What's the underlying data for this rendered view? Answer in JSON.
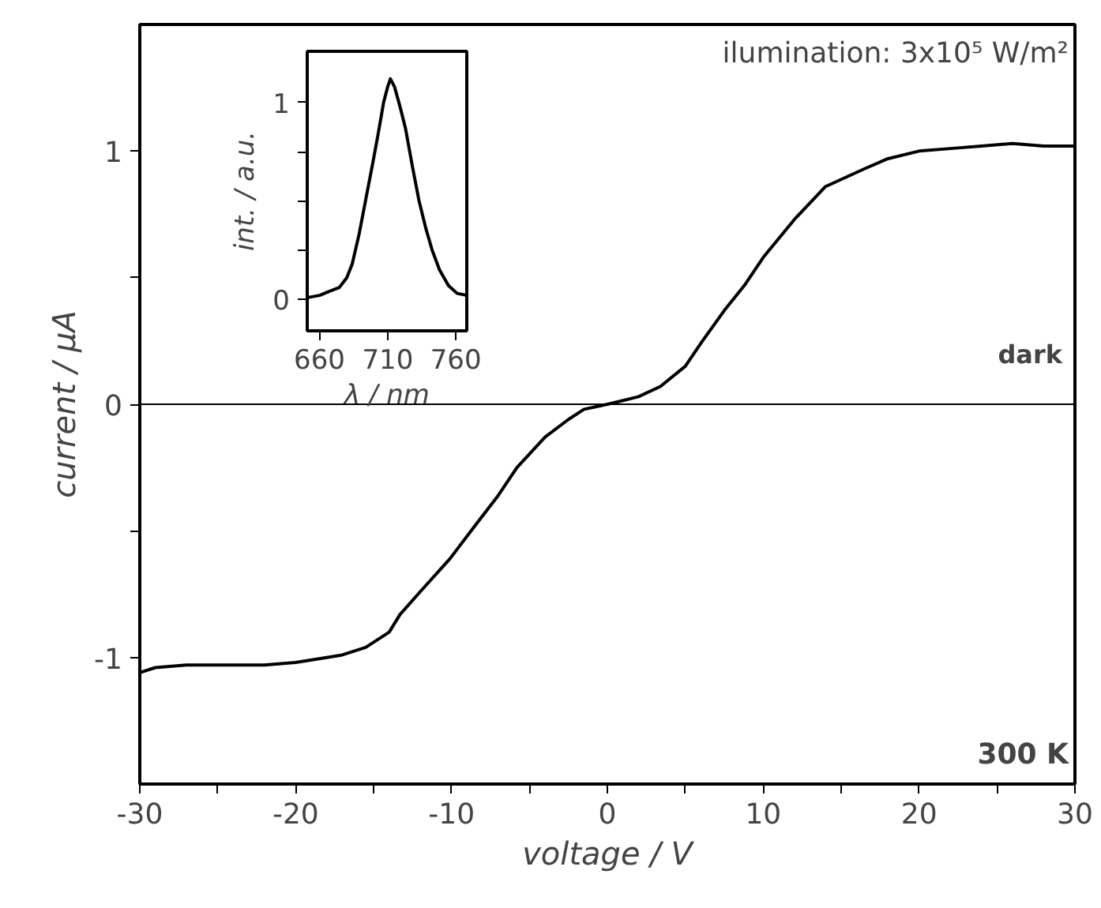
{
  "chart_data": [
    {
      "type": "line",
      "xlabel": "voltage / V",
      "ylabel": "current / µA",
      "xlim": [
        -30,
        30
      ],
      "ylim": [
        -1.5,
        1.5
      ],
      "xticks": [
        -30,
        {
          "value": -25,
          "label": null
        },
        -20,
        {
          "value": -15,
          "label": null
        },
        -10,
        {
          "value": -5,
          "label": null
        },
        0,
        {
          "value": 5,
          "label": null
        },
        10,
        {
          "value": 15,
          "label": null
        },
        20,
        {
          "value": 25,
          "label": null
        },
        30
      ],
      "yticks": [
        -1,
        {
          "value": -0.5,
          "label": null
        },
        0,
        {
          "value": 0.5,
          "label": null
        },
        1
      ],
      "grid": false,
      "marker": "none",
      "line_style": "solid",
      "annotations": [
        "ilumination: 3x10⁵ W/m²",
        "300 K"
      ],
      "series": [
        {
          "color": "#000000",
          "x": [
            -30,
            -29,
            -27,
            -25,
            -22,
            -20,
            -18,
            -17,
            -15.5,
            -14,
            -13.3,
            -12,
            -10.1,
            -8.5,
            -7,
            -5.8,
            -4,
            -2.5,
            -1.5,
            0,
            0.7,
            2,
            3.4,
            5,
            6.1,
            7.5,
            8.8,
            10,
            12,
            14,
            16.5,
            18,
            20,
            22,
            24,
            26,
            28,
            30
          ],
          "values": [
            -1.06,
            -1.04,
            -1.03,
            -1.03,
            -1.03,
            -1.02,
            -1.0,
            -0.99,
            -0.96,
            -0.9,
            -0.83,
            -0.74,
            -0.61,
            -0.48,
            -0.36,
            -0.25,
            -0.13,
            -0.06,
            -0.02,
            0.0,
            0.01,
            0.03,
            0.07,
            0.15,
            0.25,
            0.37,
            0.47,
            0.58,
            0.73,
            0.86,
            0.93,
            0.97,
            1.0,
            1.01,
            1.02,
            1.03,
            1.02,
            1.02
          ]
        },
        {
          "name": "dark",
          "color": "#000000",
          "x": [
            -30,
            30
          ],
          "values": [
            0,
            0
          ]
        }
      ]
    },
    {
      "type": "line",
      "xlabel": "λ / nm",
      "ylabel": "int. / a.u.",
      "xlim": [
        651,
        768
      ],
      "ylim": [
        -0.16,
        1.26
      ],
      "xticks": [
        660,
        710,
        760
      ],
      "yticks": [
        0,
        {
          "value": 0.25,
          "label": null
        },
        {
          "value": 0.5,
          "label": null
        },
        {
          "value": 0.75,
          "label": null
        },
        1
      ],
      "grid": false,
      "marker": "none",
      "line_style": "solid",
      "series": [
        {
          "color": "#000000",
          "x": [
            652,
            660,
            667,
            674.5,
            680,
            684,
            689,
            694,
            699,
            703,
            707,
            710,
            712,
            715,
            719,
            723,
            728,
            733,
            738,
            742.6,
            748,
            754.6,
            761,
            768
          ],
          "values": [
            0.01,
            0.02,
            0.04,
            0.06,
            0.11,
            0.18,
            0.33,
            0.51,
            0.69,
            0.84,
            1.0,
            1.08,
            1.12,
            1.08,
            0.98,
            0.87,
            0.68,
            0.5,
            0.36,
            0.25,
            0.15,
            0.07,
            0.03,
            0.02
          ]
        }
      ]
    }
  ]
}
